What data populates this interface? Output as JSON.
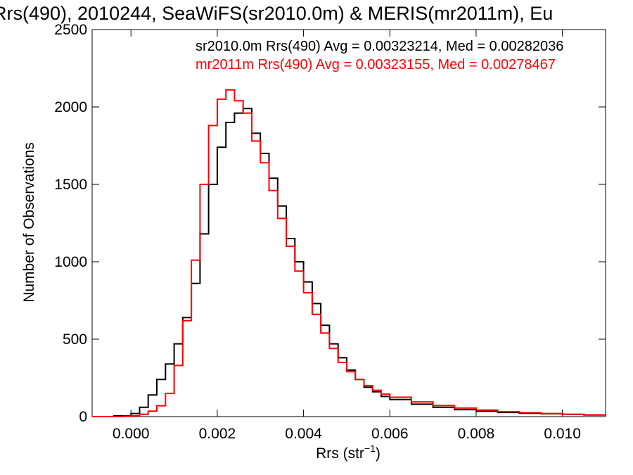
{
  "chart_data": {
    "type": "line",
    "title": "Rrs(490), 2010244, SeaWiFS(sr2010.0m) & MERIS(mr2011m), Eu",
    "xlabel": "Rrs (str",
    "xlabel_sup": "−1",
    "xlabel_close": ")",
    "ylabel": "Number of Observations",
    "xlim": [
      -0.0009,
      0.011
    ],
    "ylim": [
      0,
      2500
    ],
    "xticks": [
      0.0,
      0.002,
      0.004,
      0.006,
      0.008,
      0.01
    ],
    "xtick_labels": [
      "0.000",
      "0.002",
      "0.004",
      "0.006",
      "0.008",
      "0.010"
    ],
    "yticks": [
      0,
      500,
      1000,
      1500,
      2000,
      2500
    ],
    "ytick_labels": [
      "0",
      "500",
      "1000",
      "1500",
      "2000",
      "2500"
    ],
    "grid": false,
    "legend_placement": "top-right",
    "series": [
      {
        "name": "sr2010.0m",
        "legend": "sr2010.0m Rrs(490) Avg = 0.00323214, Med = 0.00282036",
        "color": "#000000",
        "x": [
          -0.0009,
          -0.0004,
          0.0,
          0.0002,
          0.0004,
          0.0006,
          0.0008,
          0.001,
          0.0012,
          0.0014,
          0.0016,
          0.0018,
          0.002,
          0.0022,
          0.0024,
          0.0026,
          0.0028,
          0.003,
          0.0032,
          0.0034,
          0.0036,
          0.0038,
          0.004,
          0.0042,
          0.0044,
          0.0046,
          0.0048,
          0.005,
          0.0052,
          0.0054,
          0.0056,
          0.0058,
          0.006,
          0.0065,
          0.007,
          0.0075,
          0.008,
          0.0085,
          0.009,
          0.0095,
          0.01,
          0.0105,
          0.011
        ],
        "y": [
          0,
          5,
          20,
          60,
          140,
          240,
          340,
          470,
          640,
          860,
          1180,
          1500,
          1740,
          1900,
          1960,
          1990,
          1830,
          1700,
          1540,
          1360,
          1150,
          1000,
          870,
          730,
          590,
          470,
          380,
          300,
          240,
          190,
          160,
          130,
          110,
          80,
          60,
          45,
          35,
          27,
          22,
          18,
          14,
          10,
          8
        ]
      },
      {
        "name": "mr2011m",
        "legend": "mr2011m Rrs(490) Avg = 0.00323155, Med = 0.00278467",
        "color": "#ff0000",
        "x": [
          -0.0009,
          -0.0002,
          0.0,
          0.0002,
          0.0004,
          0.0006,
          0.0008,
          0.001,
          0.0012,
          0.0014,
          0.0016,
          0.0018,
          0.002,
          0.0022,
          0.0024,
          0.0026,
          0.0028,
          0.003,
          0.0032,
          0.0034,
          0.0036,
          0.0038,
          0.004,
          0.0042,
          0.0044,
          0.0046,
          0.0048,
          0.005,
          0.0052,
          0.0054,
          0.0056,
          0.0058,
          0.006,
          0.0065,
          0.007,
          0.0075,
          0.008,
          0.0085,
          0.009,
          0.0095,
          0.01,
          0.0105,
          0.011
        ],
        "y": [
          0,
          2,
          5,
          15,
          35,
          70,
          150,
          330,
          620,
          1010,
          1500,
          1880,
          2050,
          2110,
          2040,
          1960,
          1780,
          1640,
          1460,
          1280,
          1100,
          940,
          800,
          660,
          540,
          440,
          350,
          290,
          240,
          200,
          170,
          145,
          125,
          95,
          72,
          55,
          42,
          32,
          25,
          20,
          15,
          11,
          9
        ]
      }
    ]
  }
}
